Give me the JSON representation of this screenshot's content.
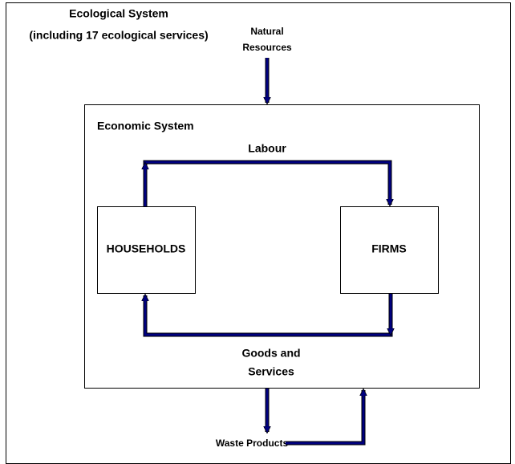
{
  "ecological_system": {
    "title": [
      "Ecological System",
      "(including 17 ecological services)"
    ]
  },
  "inputs": {
    "natural_resources": [
      "Natural",
      "Resources"
    ]
  },
  "economic_system": {
    "title": "Economic System",
    "nodes": [
      {
        "label": "HOUSEHOLDS"
      },
      {
        "label": "FIRMS"
      }
    ],
    "flows": {
      "labour": "Labour",
      "goods_and_services": [
        "Goods and",
        "Services"
      ]
    }
  },
  "outputs": {
    "waste_products": "Waste Products"
  }
}
